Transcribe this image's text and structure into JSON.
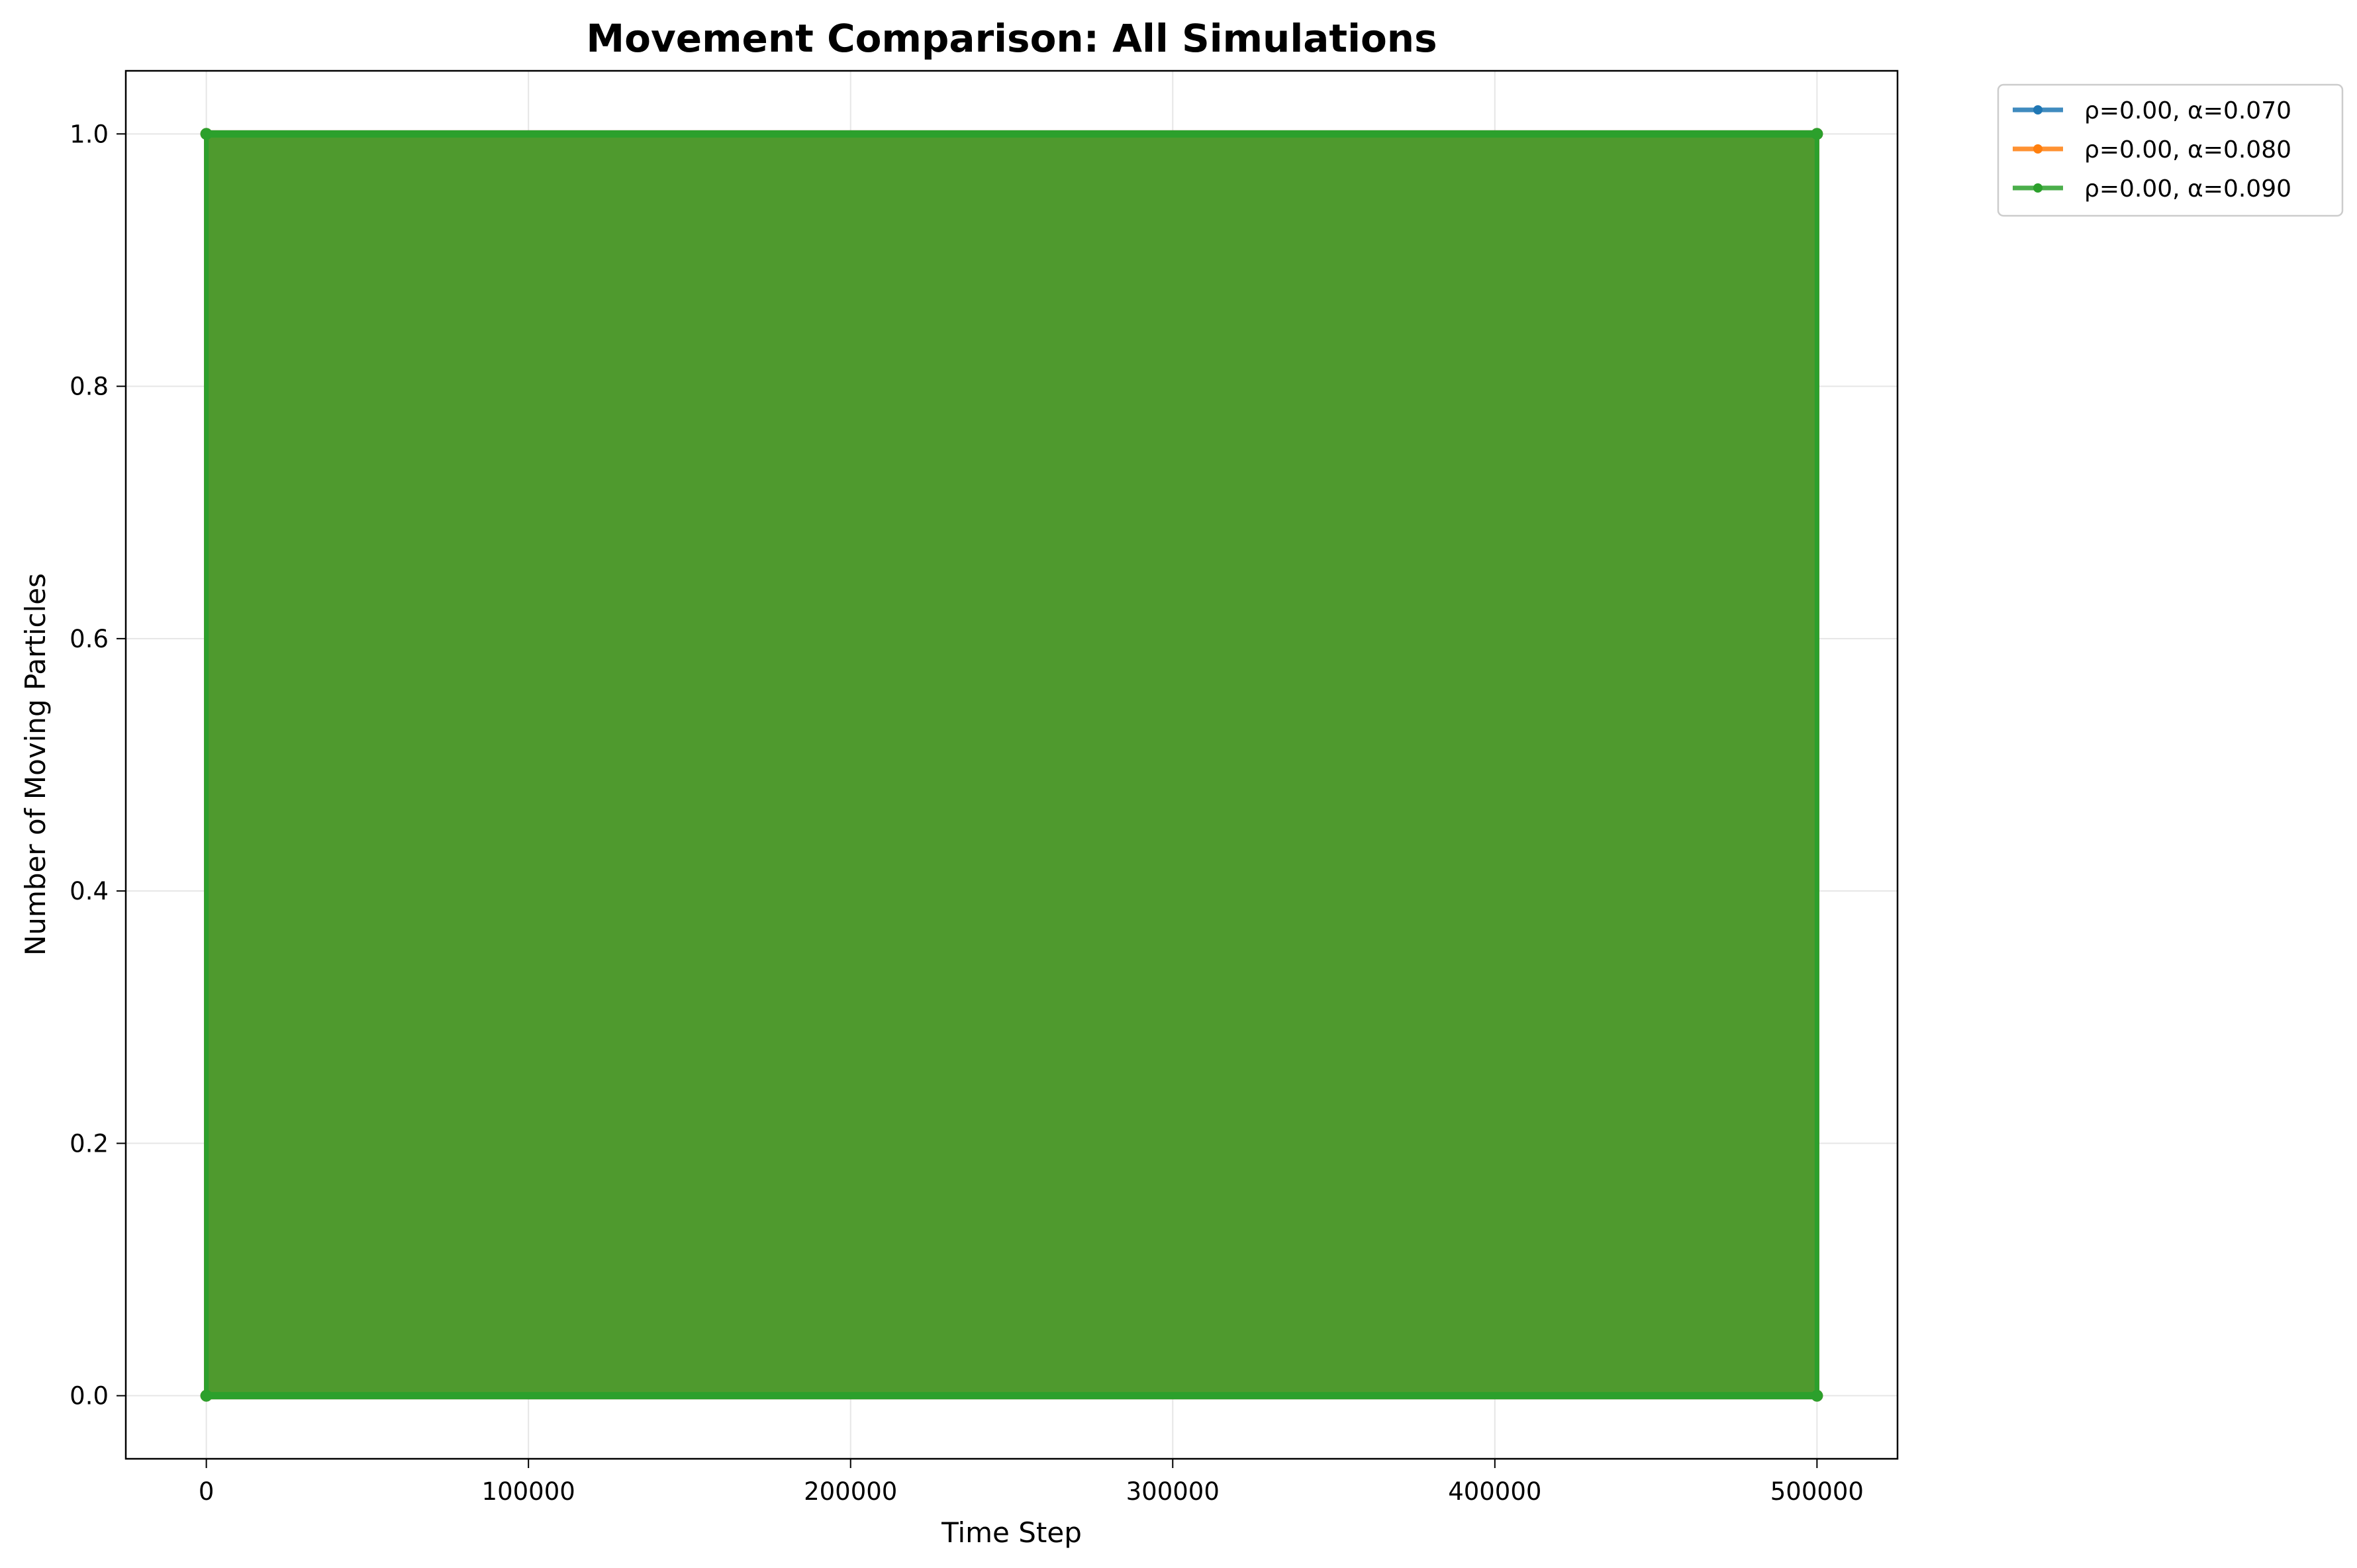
{
  "chart_data": {
    "type": "line",
    "title": "Movement Comparison: All Simulations",
    "xlabel": "Time Step",
    "ylabel": "Number of Moving Particles",
    "xlim": [
      -25000,
      525000
    ],
    "ylim": [
      -0.05,
      1.05
    ],
    "x_ticks": [
      0,
      100000,
      200000,
      300000,
      400000,
      500000
    ],
    "x_tick_labels": [
      "0",
      "100000",
      "200000",
      "300000",
      "400000",
      "500000"
    ],
    "y_ticks": [
      0.0,
      0.2,
      0.4,
      0.6,
      0.8,
      1.0
    ],
    "y_tick_labels": [
      "0.0",
      "0.2",
      "0.4",
      "0.6",
      "0.8",
      "1.0"
    ],
    "grid": true,
    "legend_position": "outside top-right",
    "x_range": [
      0,
      500000
    ],
    "value_range": [
      0,
      1
    ],
    "series": [
      {
        "name": "ρ=0.00, α=0.070",
        "color": "#1f77b4"
      },
      {
        "name": "ρ=0.00, α=0.080",
        "color": "#ff7f0e"
      },
      {
        "name": "ρ=0.00, α=0.090",
        "color": "#2ca02c"
      }
    ]
  }
}
